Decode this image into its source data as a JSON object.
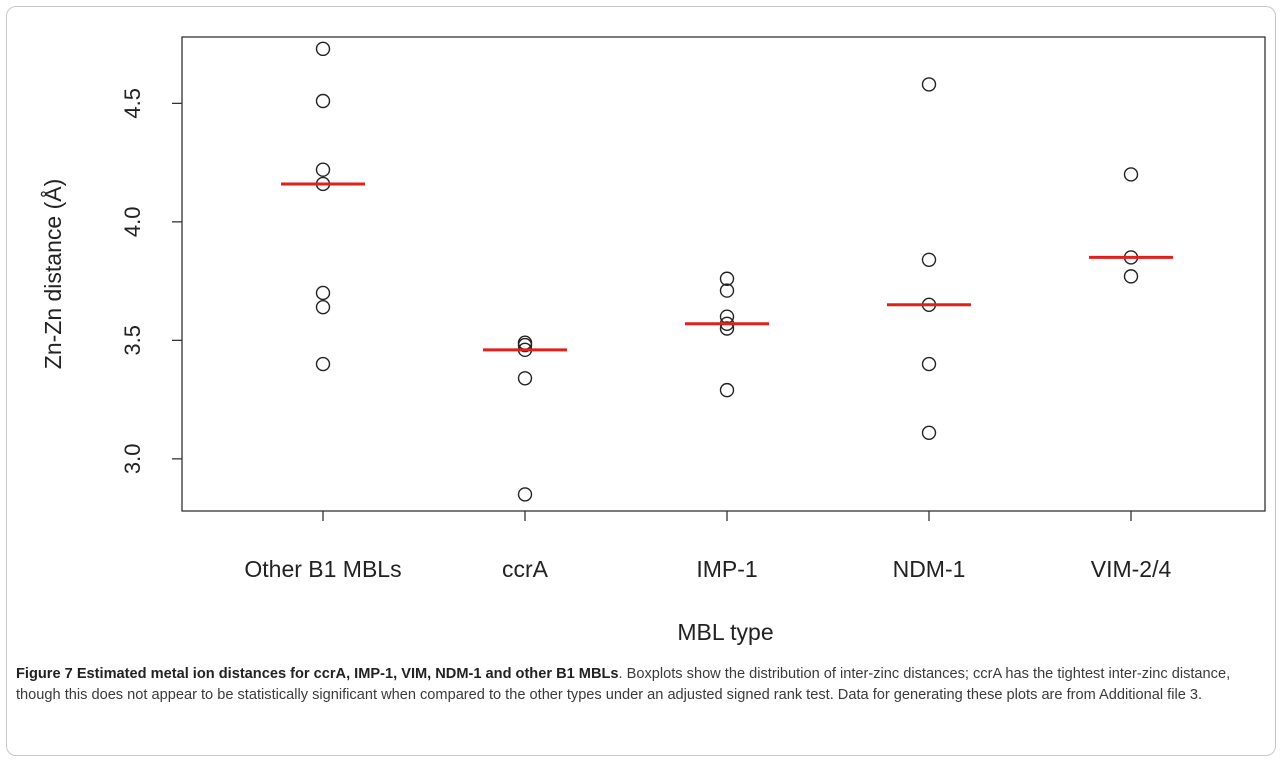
{
  "chart_data": {
    "type": "scatter",
    "xlabel": "MBL type",
    "ylabel": "Zn-Zn distance (Å)",
    "categories": [
      "Other B1 MBLs",
      "ccrA",
      "IMP-1",
      "NDM-1",
      "VIM-2/4"
    ],
    "yticks": [
      "3.0",
      "3.5",
      "4.0",
      "4.5"
    ],
    "ylim": [
      2.78,
      4.78
    ],
    "grid": false,
    "legend": "none",
    "point_color": "#222222",
    "median_color": "#e0201b",
    "points": [
      [
        4.73,
        4.51,
        4.22,
        4.16,
        3.7,
        3.64,
        3.4
      ],
      [
        3.49,
        3.48,
        3.46,
        3.34,
        2.85
      ],
      [
        3.76,
        3.71,
        3.6,
        3.57,
        3.55,
        3.29
      ],
      [
        4.58,
        3.84,
        3.65,
        3.4,
        3.11
      ],
      [
        4.2,
        3.85,
        3.77
      ]
    ],
    "medians": [
      4.16,
      3.46,
      3.57,
      3.65,
      3.85
    ]
  },
  "caption": {
    "title": "Figure 7 Estimated metal ion distances for ccrA, IMP-1, VIM, NDM-1 and other B1 MBLs",
    "body": ". Boxplots show the distribution of inter-zinc distances; ccrA has the tightest inter-zinc distance, though this does not appear to be statistically significant when compared to the other types under an adjusted signed rank test. Data for generating these plots are from Additional file 3."
  }
}
